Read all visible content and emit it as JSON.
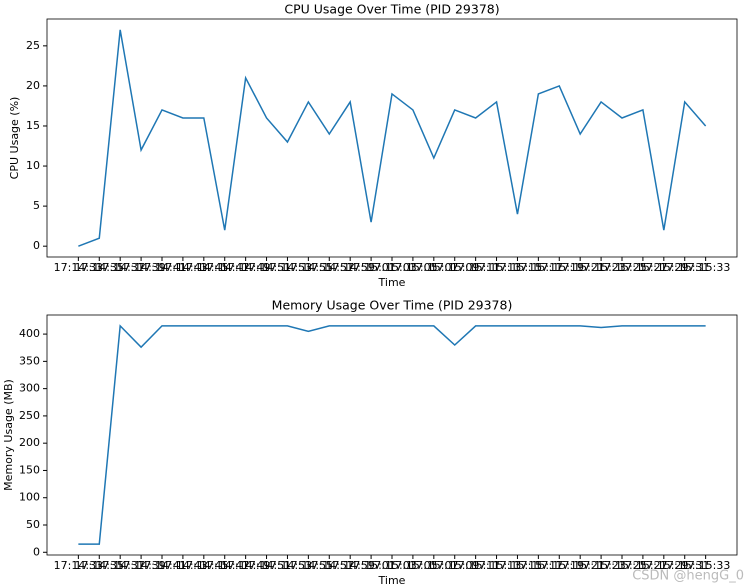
{
  "chart_data": [
    {
      "type": "line",
      "title": "CPU Usage Over Time (PID 29378)",
      "x_label": "Time",
      "y_label": "CPU Usage (%)",
      "categories": [
        "17:14:33",
        "17:14:35",
        "17:14:37",
        "17:14:39",
        "17:14:41",
        "17:14:43",
        "17:14:45",
        "17:14:47",
        "17:14:49",
        "17:14:51",
        "17:14:53",
        "17:14:55",
        "17:14:57",
        "17:14:59",
        "17:15:01",
        "17:15:03",
        "17:15:05",
        "17:15:07",
        "17:15:09",
        "17:15:11",
        "17:15:13",
        "17:15:15",
        "17:15:17",
        "17:15:19",
        "17:15:21",
        "17:15:23",
        "17:15:25",
        "17:15:27",
        "17:15:29",
        "17:15:31",
        "17:15:33"
      ],
      "series": [
        {
          "name": "CPU",
          "color": "#1f77b4",
          "values": [
            0,
            1,
            27,
            12,
            17,
            16,
            16,
            2,
            21,
            16,
            13,
            18,
            14,
            18,
            3,
            19,
            17,
            11,
            17,
            16,
            18,
            4,
            19,
            20,
            14,
            18,
            16,
            17,
            2,
            18,
            15
          ]
        }
      ],
      "ylim": [
        -1.35,
        28.35
      ],
      "yticks": [
        0,
        5,
        10,
        15,
        20,
        25
      ]
    },
    {
      "type": "line",
      "title": "Memory Usage Over Time (PID 29378)",
      "x_label": "Time",
      "y_label": "Memory Usage (MB)",
      "categories": [
        "17:14:33",
        "17:14:35",
        "17:14:37",
        "17:14:39",
        "17:14:41",
        "17:14:43",
        "17:14:45",
        "17:14:47",
        "17:14:49",
        "17:14:51",
        "17:14:53",
        "17:14:55",
        "17:14:57",
        "17:14:59",
        "17:15:01",
        "17:15:03",
        "17:15:05",
        "17:15:07",
        "17:15:09",
        "17:15:11",
        "17:15:13",
        "17:15:15",
        "17:15:17",
        "17:15:19",
        "17:15:21",
        "17:15:23",
        "17:15:25",
        "17:15:27",
        "17:15:29",
        "17:15:31",
        "17:15:33"
      ],
      "series": [
        {
          "name": "Memory",
          "color": "#1f77b4",
          "values": [
            15,
            15,
            415,
            376,
            415,
            415,
            415,
            415,
            415,
            415,
            415,
            405,
            415,
            415,
            415,
            415,
            415,
            415,
            380,
            415,
            415,
            415,
            415,
            415,
            415,
            412,
            415,
            415,
            415,
            415,
            415
          ]
        }
      ],
      "ylim": [
        -5,
        435
      ],
      "yticks": [
        0,
        50,
        100,
        150,
        200,
        250,
        300,
        350,
        400
      ]
    }
  ],
  "watermark": "CSDN @hengG_0"
}
